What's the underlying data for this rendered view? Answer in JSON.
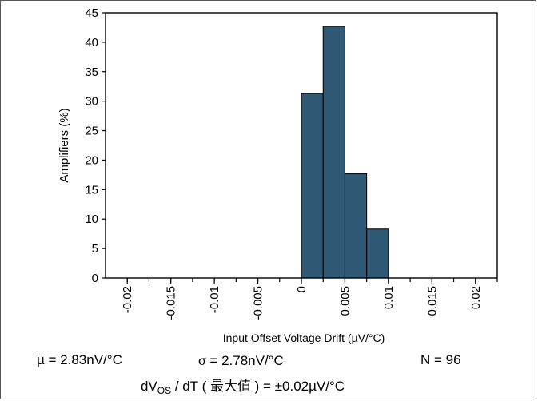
{
  "chart_data": {
    "type": "bar",
    "xlabel": "Input Offset Voltage Drift (µV/°C)",
    "ylabel": "Amplifiers (%)",
    "ylim": [
      0,
      45
    ],
    "yticks": [
      "0",
      "5",
      "10",
      "15",
      "20",
      "25",
      "30",
      "35",
      "40",
      "45"
    ],
    "xlim": [
      -0.0225,
      0.0225
    ],
    "xticks": [
      "-0.02",
      "-0.015",
      "-0.01",
      "-0.005",
      "0",
      "0.005",
      "0.01",
      "0.015",
      "0.02"
    ],
    "bin_width": 0.0025,
    "bars": [
      {
        "bin": [
          0.0,
          0.0025
        ],
        "value": 31.3
      },
      {
        "bin": [
          0.0025,
          0.005
        ],
        "value": 42.7
      },
      {
        "bin": [
          0.005,
          0.0075
        ],
        "value": 17.7
      },
      {
        "bin": [
          0.0075,
          0.01
        ],
        "value": 8.3
      }
    ],
    "bar_color": "#2e5873",
    "grid": false
  },
  "stats": {
    "mu": "µ = 2.83nV/°C",
    "sigma_symbol": "σ",
    "sigma_value": " = 2.78nV/°C",
    "n": "N = 96",
    "formula_prefix": "dV",
    "formula_sub": "OS",
    "formula_suffix": " / dT ( 最大值 ) = ±0.02µV/°C"
  }
}
